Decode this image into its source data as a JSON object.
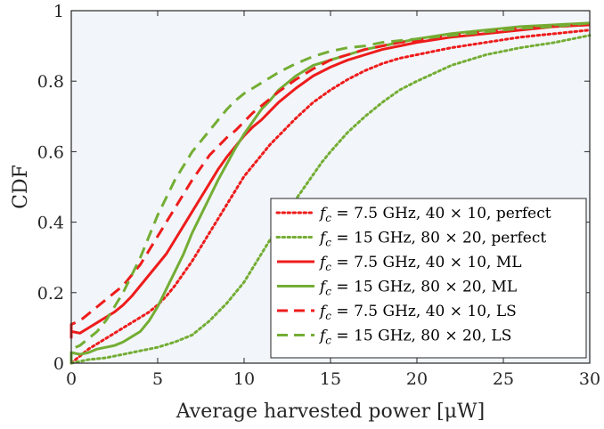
{
  "chart_data": {
    "type": "line",
    "title": "",
    "xlabel": "Average harvested power [μW]",
    "ylabel": "CDF",
    "xlim": [
      0,
      30
    ],
    "ylim": [
      0,
      1
    ],
    "x_ticks": [
      0,
      5,
      10,
      15,
      20,
      25,
      30
    ],
    "y_ticks": [
      0,
      0.2,
      0.4,
      0.6,
      0.8,
      1
    ],
    "y_tick_labels": [
      "0",
      "0.2",
      "0.4",
      "0.6",
      "0.8",
      "1"
    ],
    "grid": false,
    "legend_position": "bottom-right",
    "plot_background": "#f2f6fb",
    "series": [
      {
        "name": "f_c = 7.5 GHz, 40 × 10, perfect",
        "legend": {
          "fvar": "f",
          "fsub": "c",
          "rest": " = 7.5 GHz, 40 × 10, perfect"
        },
        "color": "#ee1c1c",
        "style": "dotted",
        "x": [
          0,
          0.5,
          1,
          1.5,
          2,
          2.5,
          3,
          3.5,
          4,
          4.5,
          5,
          5.5,
          6,
          6.5,
          7,
          7.5,
          8,
          8.5,
          9,
          9.5,
          10,
          10.5,
          11,
          11.5,
          12,
          13,
          14,
          15,
          16,
          17,
          18,
          19,
          20,
          22,
          24,
          26,
          28,
          30
        ],
        "y": [
          0.0,
          0.02,
          0.04,
          0.055,
          0.07,
          0.085,
          0.1,
          0.115,
          0.13,
          0.145,
          0.165,
          0.19,
          0.22,
          0.255,
          0.29,
          0.33,
          0.37,
          0.41,
          0.45,
          0.49,
          0.53,
          0.56,
          0.59,
          0.62,
          0.645,
          0.695,
          0.74,
          0.775,
          0.805,
          0.83,
          0.85,
          0.865,
          0.875,
          0.895,
          0.91,
          0.925,
          0.935,
          0.945
        ]
      },
      {
        "name": "f_c = 15 GHz, 80 × 20, perfect",
        "legend": {
          "fvar": "f",
          "fsub": "c",
          "rest": " = 15 GHz, 80 × 20, perfect"
        },
        "color": "#74ad34",
        "style": "dotted",
        "x": [
          0,
          1,
          2,
          3,
          4,
          5,
          6,
          7,
          7.5,
          8,
          8.5,
          9,
          9.5,
          10,
          10.5,
          11,
          11.5,
          12,
          12.5,
          13,
          13.5,
          14,
          14.5,
          15,
          16,
          17,
          18,
          19,
          20,
          22,
          24,
          26,
          28,
          30
        ],
        "y": [
          0.0,
          0.01,
          0.015,
          0.025,
          0.035,
          0.045,
          0.06,
          0.08,
          0.1,
          0.12,
          0.145,
          0.17,
          0.2,
          0.23,
          0.27,
          0.31,
          0.35,
          0.39,
          0.43,
          0.465,
          0.5,
          0.535,
          0.57,
          0.6,
          0.655,
          0.7,
          0.74,
          0.775,
          0.8,
          0.845,
          0.875,
          0.895,
          0.91,
          0.93
        ]
      },
      {
        "name": "f_c = 7.5 GHz, 40 × 10, ML",
        "legend": {
          "fvar": "f",
          "fsub": "c",
          "rest": " = 7.5 GHz, 40 × 10, ML"
        },
        "color": "#ee1c1c",
        "style": "solid",
        "x": [
          0,
          0,
          0.5,
          1,
          1.5,
          2,
          2.5,
          3,
          3.5,
          4,
          4.5,
          5,
          5.5,
          6,
          6.5,
          7,
          7.5,
          8,
          8.5,
          9,
          9.5,
          10,
          10.5,
          11,
          11.5,
          12,
          13,
          14,
          15,
          16,
          17,
          18,
          19,
          20,
          22,
          24,
          26,
          28,
          30
        ],
        "y": [
          0.07,
          0.09,
          0.085,
          0.1,
          0.115,
          0.13,
          0.145,
          0.165,
          0.19,
          0.22,
          0.25,
          0.28,
          0.31,
          0.35,
          0.39,
          0.43,
          0.47,
          0.51,
          0.55,
          0.585,
          0.615,
          0.645,
          0.67,
          0.69,
          0.715,
          0.74,
          0.78,
          0.815,
          0.84,
          0.86,
          0.875,
          0.89,
          0.9,
          0.91,
          0.925,
          0.935,
          0.945,
          0.955,
          0.96
        ]
      },
      {
        "name": "f_c = 15 GHz, 80 × 20, ML",
        "legend": {
          "fvar": "f",
          "fsub": "c",
          "rest": " = 15 GHz, 80 × 20, ML"
        },
        "color": "#74ad34",
        "style": "solid",
        "x": [
          0,
          0,
          0.5,
          1,
          1.5,
          2,
          2.5,
          3,
          3.5,
          4,
          4.5,
          5,
          5.5,
          6,
          6.5,
          7,
          7.5,
          8,
          8.5,
          9,
          9.5,
          10,
          10.5,
          11,
          11.5,
          12,
          13,
          14,
          15,
          16,
          17,
          18,
          19,
          20,
          22,
          24,
          26,
          28,
          30
        ],
        "y": [
          0.0,
          0.03,
          0.025,
          0.03,
          0.04,
          0.045,
          0.05,
          0.06,
          0.075,
          0.09,
          0.12,
          0.16,
          0.21,
          0.26,
          0.31,
          0.37,
          0.42,
          0.47,
          0.52,
          0.565,
          0.61,
          0.65,
          0.685,
          0.72,
          0.745,
          0.775,
          0.815,
          0.845,
          0.86,
          0.875,
          0.89,
          0.9,
          0.91,
          0.92,
          0.935,
          0.945,
          0.955,
          0.96,
          0.965
        ]
      },
      {
        "name": "f_c = 7.5 GHz, 40 × 10, LS",
        "legend": {
          "fvar": "f",
          "fsub": "c",
          "rest": " = 7.5 GHz, 40 × 10, LS"
        },
        "color": "#ee1c1c",
        "style": "dashed",
        "x": [
          0,
          0,
          0.5,
          1,
          1.5,
          2,
          2.5,
          3,
          3.5,
          4,
          4.5,
          5,
          5.5,
          6,
          6.5,
          7,
          7.5,
          8,
          8.5,
          9,
          9.5,
          10,
          10.5,
          11,
          11.5,
          12,
          13,
          14,
          15,
          16,
          17,
          18,
          19,
          20,
          22,
          24,
          26,
          28,
          30
        ],
        "y": [
          0.09,
          0.11,
          0.12,
          0.14,
          0.16,
          0.18,
          0.2,
          0.22,
          0.25,
          0.28,
          0.32,
          0.36,
          0.4,
          0.44,
          0.48,
          0.52,
          0.555,
          0.59,
          0.615,
          0.64,
          0.66,
          0.685,
          0.71,
          0.73,
          0.75,
          0.77,
          0.805,
          0.835,
          0.86,
          0.875,
          0.89,
          0.9,
          0.91,
          0.915,
          0.93,
          0.94,
          0.95,
          0.955,
          0.96
        ]
      },
      {
        "name": "f_c = 15 GHz, 80 × 20, LS",
        "legend": {
          "fvar": "f",
          "fsub": "c",
          "rest": " = 15 GHz, 80 × 20, LS"
        },
        "color": "#74ad34",
        "style": "dashed",
        "x": [
          0,
          0,
          0.5,
          1,
          1.5,
          2,
          2.5,
          3,
          3.5,
          4,
          4.5,
          5,
          5.5,
          6,
          6.5,
          7,
          7.5,
          8,
          8.5,
          9,
          9.5,
          10,
          10.5,
          11,
          11.5,
          12,
          13,
          14,
          15,
          16,
          17,
          18,
          19,
          20,
          22,
          24,
          26,
          28,
          30
        ],
        "y": [
          0.0,
          0.04,
          0.05,
          0.07,
          0.09,
          0.12,
          0.16,
          0.2,
          0.25,
          0.3,
          0.36,
          0.42,
          0.47,
          0.52,
          0.56,
          0.6,
          0.63,
          0.66,
          0.69,
          0.72,
          0.745,
          0.765,
          0.78,
          0.795,
          0.81,
          0.825,
          0.85,
          0.87,
          0.885,
          0.895,
          0.9,
          0.91,
          0.915,
          0.92,
          0.93,
          0.94,
          0.95,
          0.955,
          0.965
        ]
      }
    ]
  }
}
